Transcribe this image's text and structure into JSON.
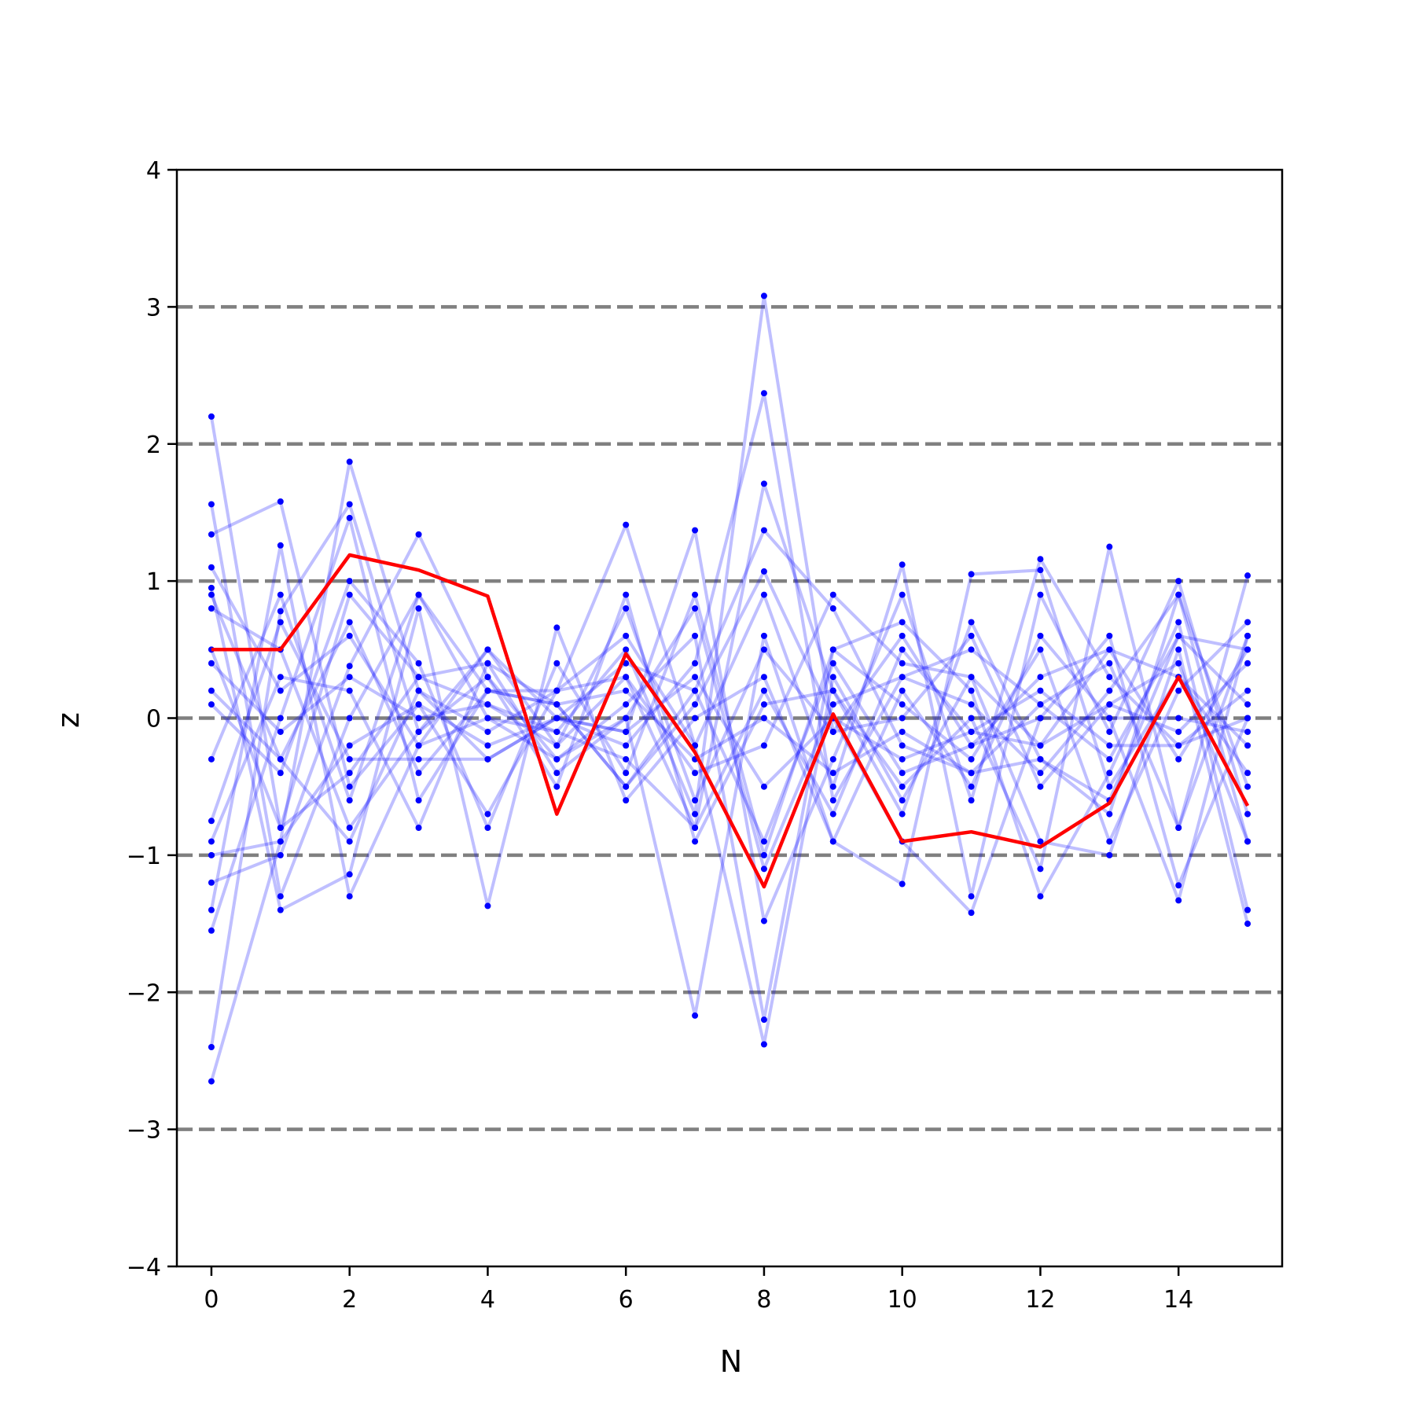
{
  "chart_data": {
    "type": "line",
    "title": "",
    "xlabel": "N",
    "ylabel": "z",
    "xlim": [
      -0.5,
      15.5
    ],
    "ylim": [
      -4,
      4
    ],
    "x_ticks": [
      0,
      2,
      4,
      6,
      8,
      10,
      12,
      14
    ],
    "x_tick_labels": [
      "0",
      "2",
      "4",
      "6",
      "8",
      "10",
      "12",
      "14"
    ],
    "y_ticks": [
      -4,
      -3,
      -2,
      -1,
      0,
      1,
      2,
      3,
      4
    ],
    "y_tick_labels": [
      "−4",
      "−3",
      "−2",
      "−1",
      "0",
      "1",
      "2",
      "3",
      "4"
    ],
    "reference_lines": [
      -3,
      -2,
      -1,
      0,
      1,
      2,
      3
    ],
    "reference_line_color": "#808080",
    "series_color": "#0000ff",
    "highlight_color": "#ff0000",
    "x": [
      0,
      1,
      2,
      3,
      4,
      5,
      6,
      7,
      8,
      9,
      10,
      11,
      12,
      13,
      14,
      15
    ],
    "series": [
      {
        "values": [
          2.2,
          -0.8,
          0.9,
          0.3,
          0.1,
          -0.1,
          0.5,
          -0.7,
          3.08,
          -0.1,
          0.6,
          -0.2,
          0.3,
          0.5,
          -0.3,
          0.5
        ]
      },
      {
        "values": [
          -2.65,
          -0.9,
          1.87,
          0.2,
          -0.3,
          0.0,
          -0.2,
          0.4,
          2.37,
          -0.6,
          0.3,
          0.1,
          -0.4,
          0.2,
          0.9,
          -0.5
        ]
      },
      {
        "values": [
          -2.4,
          0.78,
          1.56,
          -0.1,
          0.5,
          -0.2,
          0.3,
          -0.8,
          1.71,
          0.2,
          -0.7,
          0.7,
          -0.3,
          -0.6,
          0.6,
          0.1
        ]
      },
      {
        "values": [
          1.56,
          -1.3,
          0.0,
          0.9,
          0.2,
          0.1,
          -0.5,
          0.2,
          1.37,
          0.8,
          -0.2,
          -0.4,
          0.1,
          0.4,
          -0.8,
          0.6
        ]
      },
      {
        "values": [
          1.34,
          1.58,
          -0.5,
          0.1,
          -0.7,
          0.2,
          1.41,
          -0.2,
          -2.38,
          0.3,
          -0.6,
          0.3,
          -0.2,
          0.1,
          0.4,
          -0.9
        ]
      },
      {
        "values": [
          -1.2,
          -1.0,
          0.38,
          1.34,
          0.3,
          -0.3,
          0.1,
          0.6,
          -2.2,
          0.5,
          0.1,
          -0.3,
          0.5,
          -0.9,
          0.2,
          0.7
        ]
      },
      {
        "values": [
          -1.4,
          1.26,
          -1.3,
          -0.2,
          0.5,
          0.0,
          -0.1,
          1.37,
          -1.48,
          -0.3,
          0.9,
          -0.6,
          1.16,
          0.3,
          -0.2,
          0.2
        ]
      },
      {
        "values": [
          -1.55,
          0.0,
          1.46,
          -0.6,
          0.2,
          0.2,
          0.6,
          -0.2,
          0.9,
          -0.5,
          1.12,
          -1.3,
          0.9,
          -0.1,
          1.0,
          -0.7
        ]
      },
      {
        "values": [
          0.95,
          -1.4,
          -1.14,
          0.8,
          -1.37,
          0.66,
          -0.6,
          0.0,
          0.3,
          -0.9,
          -1.21,
          1.05,
          1.08,
          -0.5,
          0.3,
          -0.2
        ]
      },
      {
        "values": [
          0.8,
          0.5,
          -0.8,
          -0.1,
          0.3,
          -0.5,
          0.9,
          -0.9,
          0.1,
          0.2,
          -0.5,
          0.0,
          -1.1,
          1.25,
          -0.8,
          1.04
        ]
      },
      {
        "values": [
          0.1,
          -0.4,
          1.0,
          0.4,
          -0.8,
          0.4,
          -0.4,
          0.9,
          -1.0,
          0.5,
          0.7,
          0.2,
          -1.3,
          -0.4,
          0.7,
          -1.4
        ]
      },
      {
        "values": [
          -0.3,
          0.9,
          -0.6,
          0.9,
          0.0,
          -0.3,
          0.0,
          -2.17,
          0.6,
          -0.9,
          0.2,
          -0.5,
          0.6,
          0.0,
          -1.33,
          0.6
        ]
      },
      {
        "values": [
          -0.9,
          0.3,
          0.2,
          -0.8,
          0.4,
          0.1,
          -0.5,
          0.1,
          1.07,
          0.0,
          -0.9,
          -1.42,
          0.0,
          0.6,
          -1.22,
          0.0
        ]
      },
      {
        "values": [
          0.2,
          -0.3,
          -0.9,
          0.2,
          -0.1,
          0.2,
          0.3,
          -0.4,
          -0.2,
          0.9,
          0.4,
          0.3,
          -0.9,
          -1.0,
          0.5,
          -1.5
        ]
      },
      {
        "values": [
          0.4,
          -0.1,
          0.3,
          0.0,
          0.1,
          -0.2,
          0.8,
          -0.6,
          0.5,
          -0.1,
          0.0,
          0.6,
          -0.5,
          0.1,
          -0.1,
          0.4
        ]
      },
      {
        "values": [
          -0.75,
          0.7,
          -0.3,
          -0.3,
          -0.3,
          0.0,
          -0.1,
          0.3,
          -0.5,
          0.0,
          -0.3,
          -0.1,
          0.2,
          -0.2,
          -0.2,
          0.0
        ]
      },
      {
        "values": [
          1.1,
          0.2,
          0.6,
          -0.2,
          0.0,
          -0.1,
          -0.3,
          -0.8,
          0.2,
          -0.7,
          0.5,
          -0.1,
          -0.2,
          0.5,
          0.3,
          -0.4
        ]
      },
      {
        "values": [
          -1.0,
          -0.9,
          -0.2,
          0.1,
          -0.2,
          0.0,
          0.4,
          0.2,
          -0.9,
          0.4,
          -0.4,
          -0.2,
          0.0,
          0.0,
          0.0,
          -0.1
        ]
      },
      {
        "values": [
          0.5,
          -0.8,
          -0.4,
          0.3,
          0.4,
          -0.4,
          0.0,
          0.8,
          -1.1,
          0.1,
          0.3,
          0.5,
          0.1,
          -0.3,
          0.6,
          0.5
        ]
      },
      {
        "values": [
          0.9,
          -0.3,
          0.7,
          -0.4,
          0.2,
          0.1,
          0.2,
          -0.3,
          0.0,
          -0.4,
          -0.1,
          -0.4,
          -0.3,
          -0.7,
          0.9,
          -0.9
        ]
      }
    ],
    "highlight_series": {
      "values": [
        0.5,
        0.5,
        1.19,
        1.08,
        0.89,
        -0.7,
        0.47,
        -0.25,
        -1.23,
        0.03,
        -0.9,
        -0.83,
        -0.94,
        -0.62,
        0.3,
        -0.64
      ]
    }
  }
}
